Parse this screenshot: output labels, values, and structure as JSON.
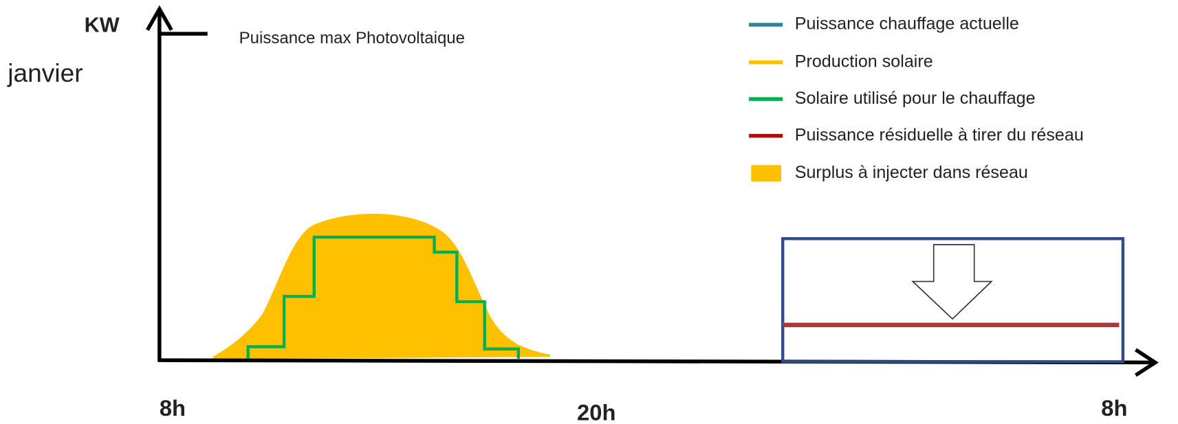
{
  "y_axis_label": "KW",
  "month": "janvier",
  "max_label": "Puissance max Photovoltaique",
  "x_labels": [
    "8h",
    "20h",
    "8h"
  ],
  "legend": [
    {
      "label": "Puissance chauffage actuelle"
    },
    {
      "label": "Production solaire"
    },
    {
      "label": "Solaire utilisé pour le chauffage"
    },
    {
      "label": "Puissance résiduelle à tirer du réseau"
    },
    {
      "label": "Surplus à injecter dans réseau"
    }
  ]
}
